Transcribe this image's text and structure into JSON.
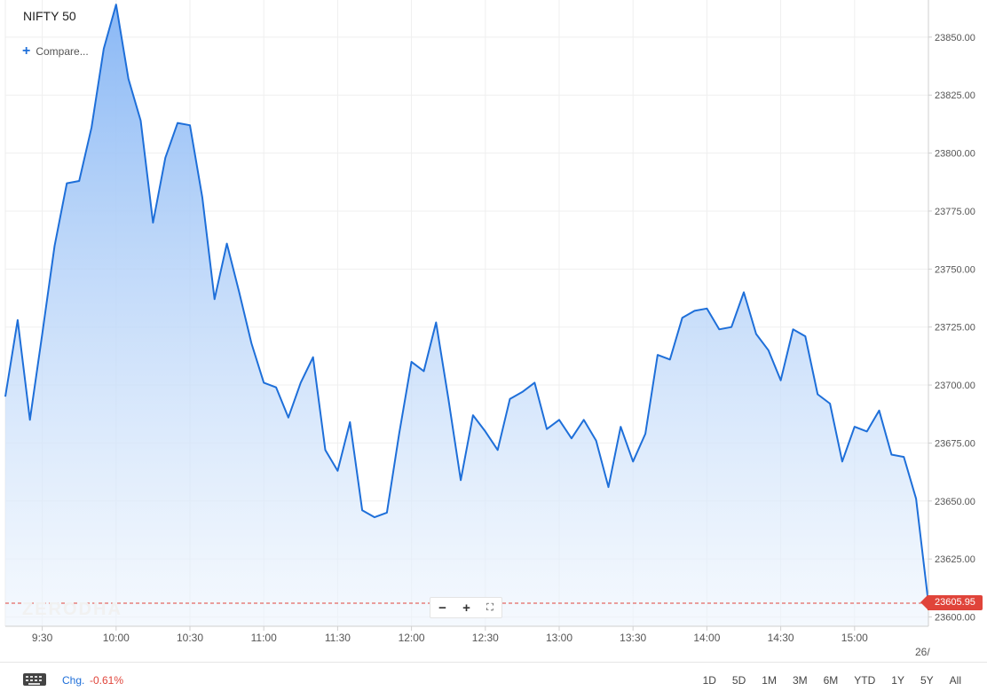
{
  "header": {
    "title": "NIFTY 50",
    "compare_label": "Compare..."
  },
  "zoom_controls": {
    "minus": "−",
    "plus": "+",
    "fullscreen": "⛶"
  },
  "watermark": "ZERODHA",
  "last_price": "23605.95",
  "date_label": "26/",
  "footer": {
    "chg_label": "Chg.",
    "chg_value": "-0.61%",
    "ranges": [
      "1D",
      "5D",
      "1M",
      "3M",
      "6M",
      "YTD",
      "1Y",
      "5Y",
      "All"
    ]
  },
  "colors": {
    "line": "#1e6fd9",
    "fill_top": "#8ab8f5",
    "fill_bottom": "#eef5fd",
    "price_badge": "#e0443a"
  },
  "chart_data": {
    "type": "area",
    "title": "NIFTY 50",
    "xlabel": "",
    "ylabel": "",
    "x_ticks": [
      "9:30",
      "10:00",
      "10:30",
      "11:00",
      "11:30",
      "12:00",
      "12:30",
      "13:00",
      "13:30",
      "14:00",
      "14:30",
      "15:00"
    ],
    "y_ticks": [
      "23600.00",
      "23625.00",
      "23650.00",
      "23675.00",
      "23700.00",
      "23725.00",
      "23750.00",
      "23775.00",
      "23800.00",
      "23825.00",
      "23850.00"
    ],
    "ylim": [
      23596,
      23866
    ],
    "x_range": [
      "9:15",
      "15:30"
    ],
    "last_value": 23605.95,
    "grid": true,
    "series": [
      {
        "x": [
          "9:15",
          "9:20",
          "9:25",
          "9:30",
          "9:35",
          "9:40",
          "9:45",
          "9:50",
          "9:55",
          "10:00",
          "10:05",
          "10:10",
          "10:15",
          "10:20",
          "10:25",
          "10:30",
          "10:35",
          "10:40",
          "10:45",
          "10:50",
          "10:55",
          "11:00",
          "11:05",
          "11:10",
          "11:15",
          "11:20",
          "11:25",
          "11:30",
          "11:35",
          "11:40",
          "11:45",
          "11:50",
          "11:55",
          "12:00",
          "12:05",
          "12:10",
          "12:15",
          "12:20",
          "12:25",
          "12:30",
          "12:35",
          "12:40",
          "12:45",
          "12:50",
          "12:55",
          "13:00",
          "13:05",
          "13:10",
          "13:15",
          "13:20",
          "13:25",
          "13:30",
          "13:35",
          "13:40",
          "13:45",
          "13:50",
          "13:55",
          "14:00",
          "14:05",
          "14:10",
          "14:15",
          "14:20",
          "14:25",
          "14:30",
          "14:35",
          "14:40",
          "14:45",
          "14:50",
          "14:55",
          "15:00",
          "15:05",
          "15:10",
          "15:15",
          "15:20",
          "15:25",
          "15:30"
        ],
        "values": [
          23695,
          23728,
          23685,
          23722,
          23760,
          23787,
          23788,
          23811,
          23845,
          23864,
          23832,
          23814,
          23770,
          23798,
          23813,
          23812,
          23781,
          23737,
          23761,
          23740,
          23718,
          23701,
          23699,
          23686,
          23701,
          23712,
          23672,
          23663,
          23684,
          23646,
          23643,
          23645,
          23679,
          23710,
          23706,
          23727,
          23694,
          23659,
          23687,
          23680,
          23672,
          23694,
          23697,
          23701,
          23681,
          23685,
          23677,
          23685,
          23676,
          23656,
          23682,
          23667,
          23679,
          23713,
          23711,
          23729,
          23732,
          23733,
          23724,
          23725,
          23740,
          23722,
          23715,
          23702,
          23724,
          23721,
          23696,
          23692,
          23667,
          23682,
          23680,
          23689,
          23670,
          23669,
          23651,
          23606
        ]
      }
    ]
  }
}
